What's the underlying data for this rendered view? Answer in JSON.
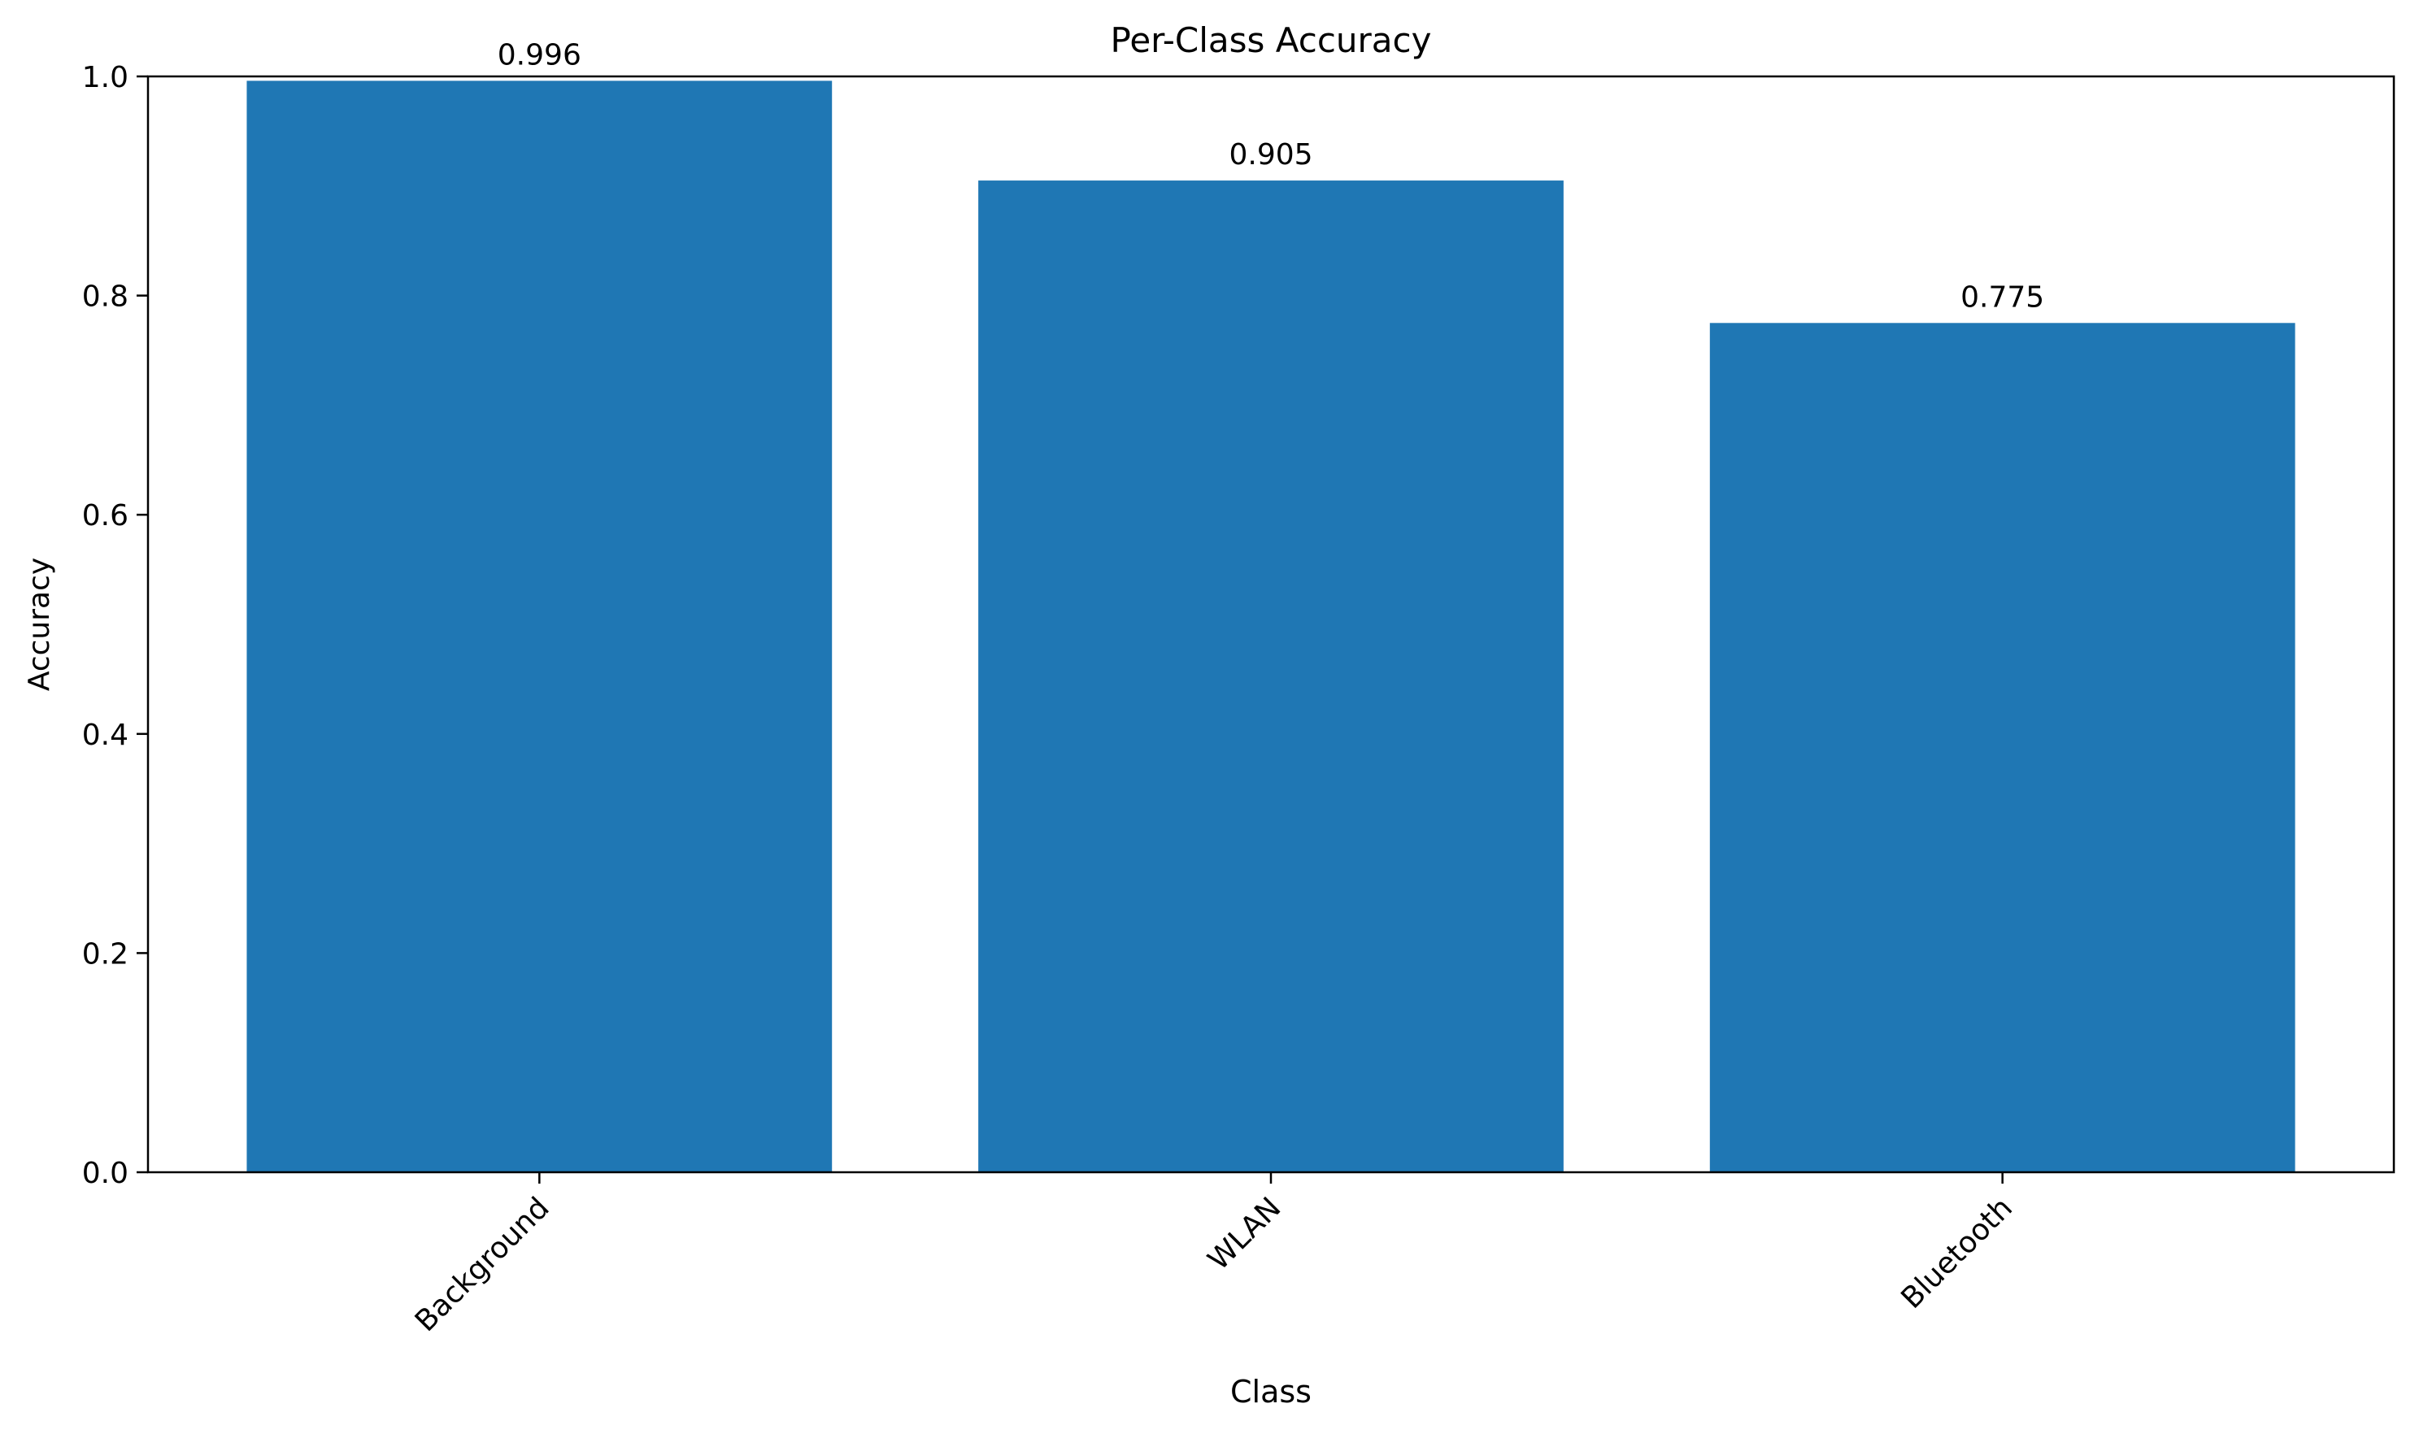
{
  "chart_data": {
    "type": "bar",
    "title": "Per-Class Accuracy",
    "xlabel": "Class",
    "ylabel": "Accuracy",
    "categories": [
      "Background",
      "WLAN",
      "Bluetooth"
    ],
    "values": [
      0.996,
      0.905,
      0.775
    ],
    "value_labels": [
      "0.996",
      "0.905",
      "0.775"
    ],
    "ylim": [
      0,
      1.0
    ],
    "yticks": [
      0.0,
      0.2,
      0.4,
      0.6,
      0.8,
      1.0
    ],
    "ytick_labels": [
      "0.0",
      "0.2",
      "0.4",
      "0.6",
      "0.8",
      "1.0"
    ],
    "bar_color": "#1f77b4",
    "grid": false,
    "xtick_rotation_degrees": 45
  }
}
